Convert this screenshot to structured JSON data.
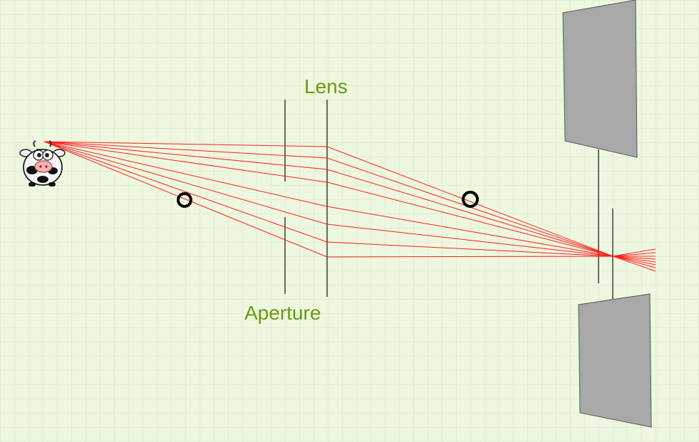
{
  "labels": {
    "lens": "Lens",
    "aperture": "Aperture"
  },
  "colors": {
    "background": "#eef7df",
    "grid": "#d3e8c3",
    "ray": "#ff1f1f",
    "label": "#6a9a13",
    "line": "#111111",
    "panel": "#a8a8a8",
    "panel_stroke": "#555555",
    "handle": "#000000"
  },
  "icons": {
    "object": "cow-icon",
    "handles": [
      "ring-handle-icon",
      "ring-handle-icon"
    ]
  }
}
